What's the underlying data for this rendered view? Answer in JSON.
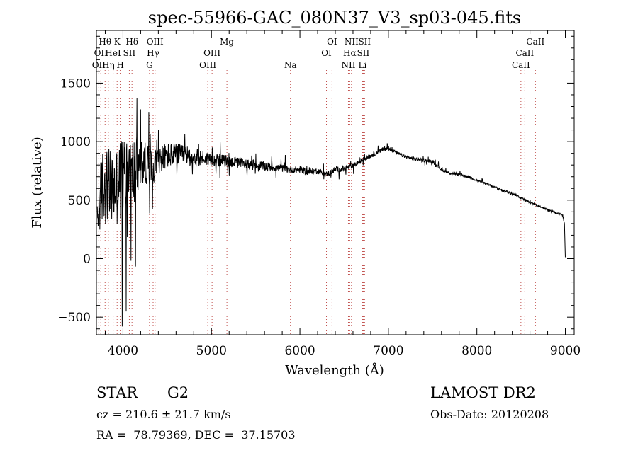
{
  "chart_data": {
    "type": "line",
    "title": "spec-55966-GAC_080N37_V3_sp03-045.fits",
    "xlabel": "Wavelength (Å)",
    "ylabel": "Flux (relative)",
    "xlim": [
      3700,
      9100
    ],
    "ylim": [
      -650,
      1950
    ],
    "x_ticks": [
      4000,
      5000,
      6000,
      7000,
      8000,
      9000
    ],
    "y_ticks": [
      -500,
      0,
      500,
      1000,
      1500
    ],
    "grid": false,
    "legend": "none",
    "line_color": "#000000",
    "line_marker_color": "#c0504d",
    "series": [
      {
        "x": [
          3710,
          3730,
          3760,
          3800,
          3850,
          3900,
          3950,
          4000,
          4050,
          4100,
          4150,
          4200,
          4250,
          4300,
          4350,
          4400,
          4500,
          4600,
          4700,
          4800,
          4900,
          5000,
          5100,
          5200,
          5300,
          5400,
          5500,
          5600,
          5700,
          5800,
          5900,
          6000,
          6100,
          6200,
          6300,
          6400,
          6500,
          6550,
          6600,
          6650,
          6700,
          6800,
          6900,
          7000,
          7100,
          7200,
          7300,
          7400,
          7500,
          7600,
          7700,
          7800,
          7900,
          8000,
          8100,
          8200,
          8300,
          8400,
          8500,
          8600,
          8700,
          8800,
          8900,
          8970,
          8990,
          9000
        ],
        "y": [
          300,
          450,
          600,
          650,
          600,
          580,
          650,
          700,
          740,
          720,
          760,
          800,
          820,
          780,
          800,
          850,
          880,
          890,
          880,
          870,
          860,
          850,
          840,
          830,
          820,
          810,
          800,
          790,
          780,
          770,
          760,
          760,
          740,
          750,
          720,
          760,
          770,
          780,
          790,
          820,
          840,
          880,
          920,
          950,
          900,
          870,
          850,
          840,
          830,
          760,
          730,
          720,
          700,
          670,
          640,
          610,
          580,
          560,
          520,
          480,
          450,
          420,
          390,
          370,
          300,
          0
        ],
        "jitter": [
          1,
          1,
          1,
          1,
          1,
          1,
          1,
          1,
          0.9,
          0.8,
          0.7,
          0.5,
          0.4,
          0.35,
          0.3,
          0.26,
          0.23,
          0.2,
          0.18,
          0.16,
          0.14,
          0.13,
          0.12,
          0.11,
          0.1,
          0.1,
          0.1,
          0.09,
          0.08,
          0.08,
          0.07,
          0.07,
          0.07,
          0.06,
          0.06,
          0.06,
          0.06,
          0.06,
          0.05,
          0.04,
          0.04,
          0.04,
          0.04,
          0.04,
          0.03,
          0.03,
          0.03,
          0.03,
          0.03,
          0.03,
          0.03,
          0.03,
          0.03,
          0.03,
          0.03,
          0.03,
          0.03,
          0.03,
          0.03,
          0.03,
          0.03,
          0.03,
          0.04,
          0.05,
          0.05,
          0.05
        ]
      }
    ],
    "line_markers": [
      {
        "x": 3727,
        "labels": [
          {
            "text": "OII",
            "row": 2
          }
        ]
      },
      {
        "x": 3750,
        "labels": [
          {
            "text": "OII",
            "row": 1
          }
        ]
      },
      {
        "x": 3798,
        "labels": [
          {
            "text": "Hθ",
            "row": 0
          }
        ]
      },
      {
        "x": 3835,
        "labels": [
          {
            "text": "Hη",
            "row": 2
          }
        ]
      },
      {
        "x": 3889,
        "labels": [
          {
            "text": "HeI",
            "row": 1
          }
        ]
      },
      {
        "x": 3934,
        "labels": [
          {
            "text": "K",
            "row": 0
          }
        ]
      },
      {
        "x": 3969,
        "labels": [
          {
            "text": "H",
            "row": 2
          }
        ]
      },
      {
        "x": 4072,
        "labels": [
          {
            "text": "SII",
            "row": 1
          }
        ]
      },
      {
        "x": 4102,
        "labels": [
          {
            "text": "Hδ",
            "row": 0
          }
        ]
      },
      {
        "x": 4300,
        "labels": [
          {
            "text": "G",
            "row": 2
          }
        ]
      },
      {
        "x": 4341,
        "labels": [
          {
            "text": "Hγ",
            "row": 1
          }
        ]
      },
      {
        "x": 4363,
        "labels": [
          {
            "text": "OIII",
            "row": 0
          }
        ]
      },
      {
        "x": 4959,
        "labels": [
          {
            "text": "OIII",
            "row": 2
          }
        ]
      },
      {
        "x": 5007,
        "labels": [
          {
            "text": "OIII",
            "row": 1
          }
        ]
      },
      {
        "x": 5175,
        "labels": [
          {
            "text": "Mg",
            "row": 0
          }
        ]
      },
      {
        "x": 5893,
        "labels": [
          {
            "text": "Na",
            "row": 2
          }
        ]
      },
      {
        "x": 6300,
        "labels": [
          {
            "text": "OI",
            "row": 1
          }
        ]
      },
      {
        "x": 6363,
        "labels": [
          {
            "text": "OI",
            "row": 0
          }
        ]
      },
      {
        "x": 6548,
        "labels": [
          {
            "text": "NII",
            "row": 2
          }
        ]
      },
      {
        "x": 6563,
        "labels": [
          {
            "text": "Hα",
            "row": 1
          }
        ]
      },
      {
        "x": 6583,
        "labels": [
          {
            "text": "NII",
            "row": 0
          }
        ]
      },
      {
        "x": 6708,
        "labels": [
          {
            "text": "Li",
            "row": 2
          }
        ]
      },
      {
        "x": 6716,
        "labels": [
          {
            "text": "SII",
            "row": 1
          }
        ]
      },
      {
        "x": 6731,
        "labels": [
          {
            "text": "SII",
            "row": 0
          }
        ]
      },
      {
        "x": 8498,
        "labels": [
          {
            "text": "CaII",
            "row": 2
          }
        ]
      },
      {
        "x": 8542,
        "labels": [
          {
            "text": "CaII",
            "row": 1
          }
        ]
      },
      {
        "x": 8662,
        "labels": [
          {
            "text": "CaII",
            "row": 0
          }
        ]
      }
    ]
  },
  "info": {
    "object_class": "STAR",
    "subclass": "G2",
    "survey": "LAMOST DR2",
    "cz": "cz = 210.6 ± 21.7 km/s",
    "obs_date": "Obs-Date: 20120208",
    "coords": "RA =  78.79369, DEC =  37.15703"
  }
}
